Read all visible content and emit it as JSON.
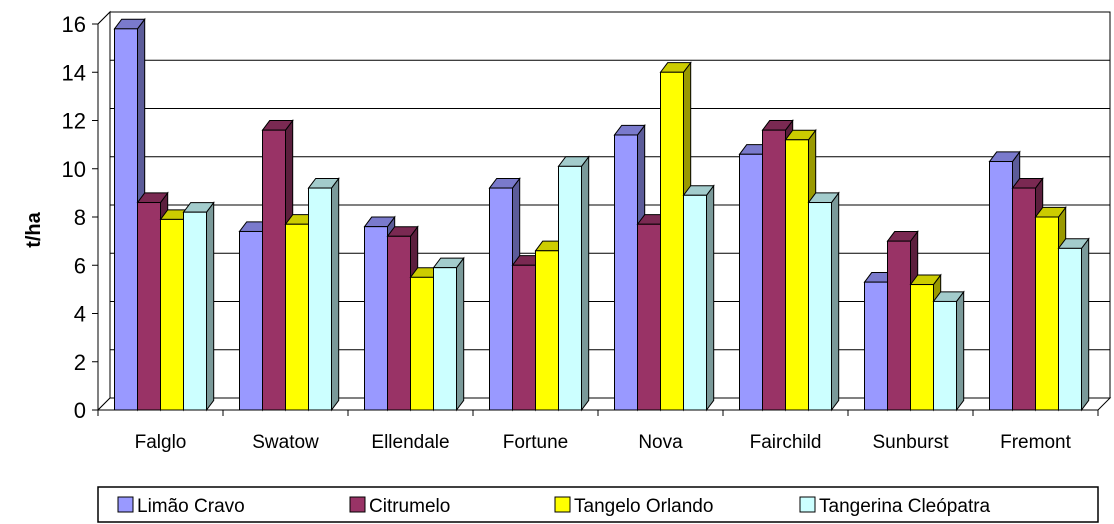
{
  "chart_data": {
    "type": "bar",
    "title": "",
    "xlabel": "",
    "ylabel": "t/ha",
    "ylim": [
      0,
      16
    ],
    "yticks": [
      0,
      2,
      4,
      6,
      8,
      10,
      12,
      14,
      16
    ],
    "grid": true,
    "legend_position": "bottom",
    "three_d": true,
    "categories": [
      "Falglo",
      "Swatow",
      "Ellendale",
      "Fortune",
      "Nova",
      "Fairchild",
      "Sunburst",
      "Fremont"
    ],
    "series": [
      {
        "name": "Limão Cravo",
        "color": "#9999ff",
        "values": [
          15.8,
          7.4,
          7.6,
          9.2,
          11.4,
          10.6,
          5.3,
          10.3
        ]
      },
      {
        "name": "Citrumelo",
        "color": "#993366",
        "values": [
          8.6,
          11.6,
          7.2,
          6.0,
          7.7,
          11.6,
          7.0,
          9.2
        ]
      },
      {
        "name": "Tangelo Orlando",
        "color": "#ffff00",
        "values": [
          7.9,
          7.7,
          5.5,
          6.6,
          14.0,
          11.2,
          5.2,
          8.0
        ]
      },
      {
        "name": "Tangerina Cleópatra",
        "color": "#ccffff",
        "values": [
          8.2,
          9.2,
          5.9,
          10.1,
          8.9,
          8.6,
          4.5,
          6.7
        ]
      }
    ]
  }
}
